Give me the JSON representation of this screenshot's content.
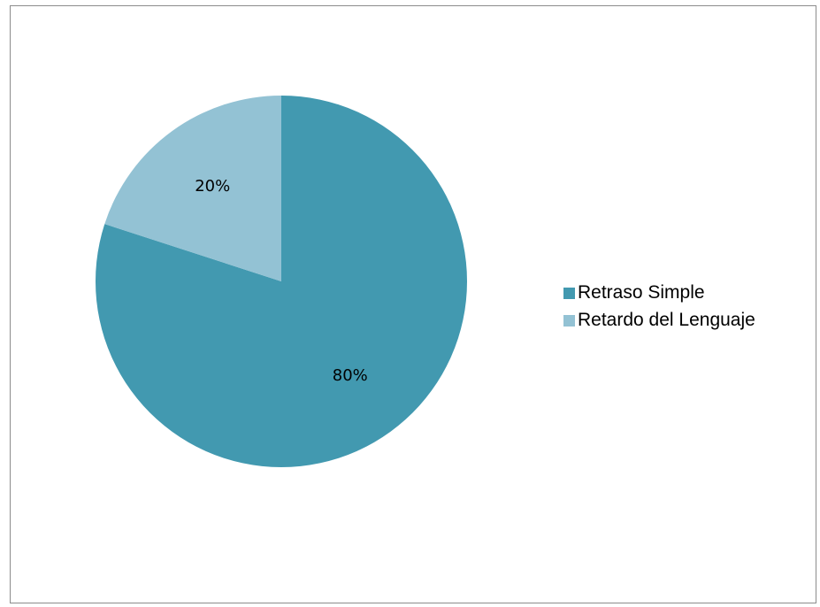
{
  "chart_data": {
    "type": "pie",
    "categories": [
      "Retraso Simple",
      "Retardo del Lenguaje"
    ],
    "values": [
      80,
      20
    ],
    "data_labels": [
      "80%",
      "20%"
    ],
    "colors": [
      "#4299b0",
      "#93c2d4"
    ],
    "legend_placement": "right",
    "start_angle_deg": 0,
    "direction": "clockwise"
  }
}
